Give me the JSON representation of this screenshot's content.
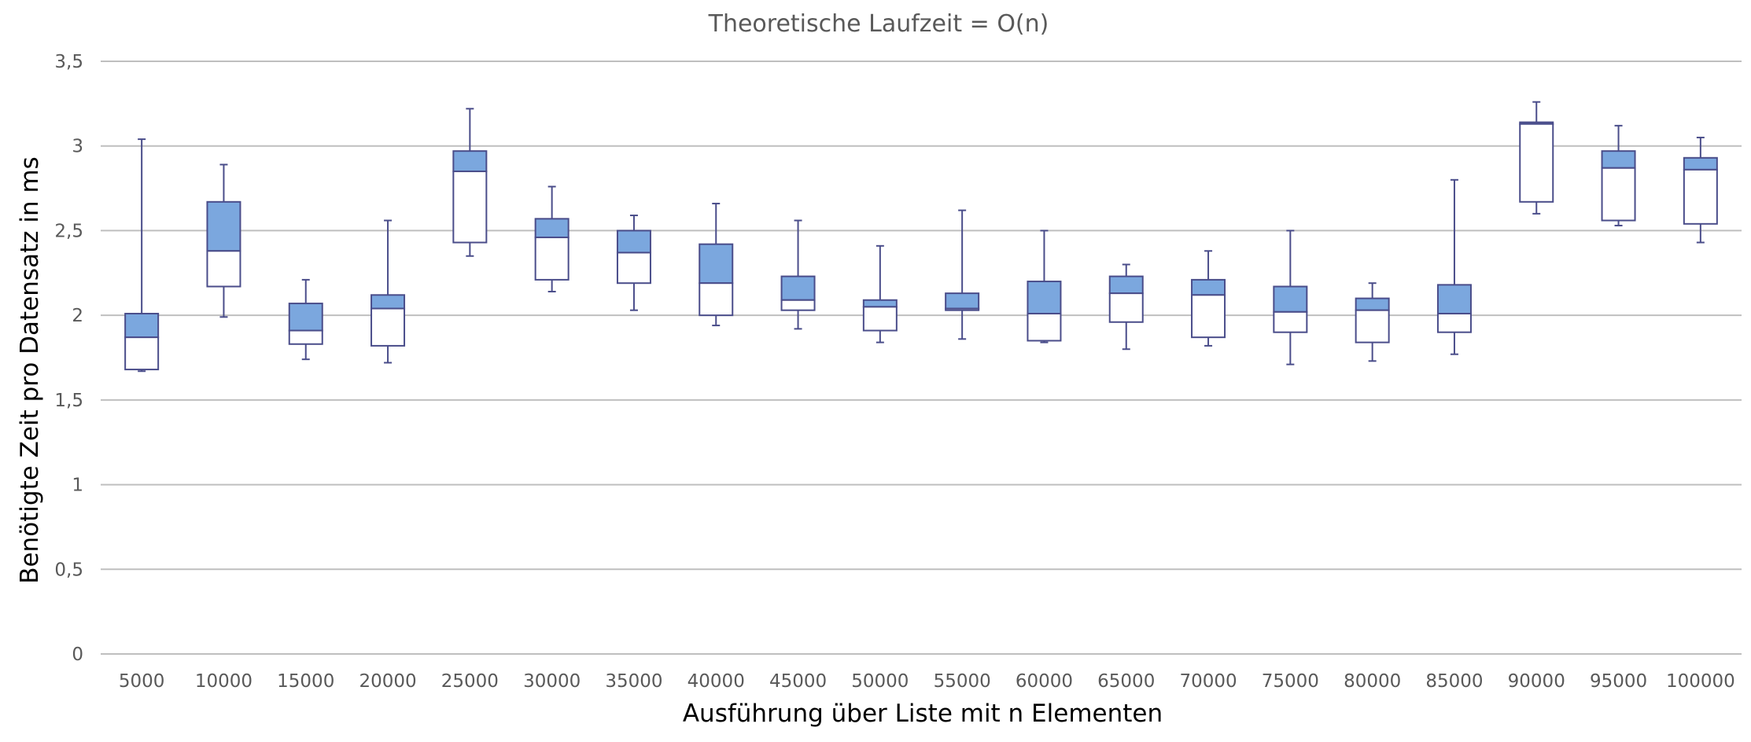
{
  "chart_data": {
    "type": "box",
    "title": "Theoretische Laufzeit = O(n)",
    "xlabel": "Ausführung über Liste mit n Elementen",
    "ylabel": "Benötigte Zeit pro Datensatz in ms",
    "ylim": [
      0,
      3.5
    ],
    "y_ticks": [
      "0",
      "0,5",
      "1",
      "1,5",
      "2",
      "2,5",
      "3",
      "3,5"
    ],
    "grid": true,
    "categories": [
      "5000",
      "10000",
      "15000",
      "20000",
      "25000",
      "30000",
      "35000",
      "40000",
      "45000",
      "50000",
      "55000",
      "60000",
      "65000",
      "70000",
      "75000",
      "80000",
      "85000",
      "90000",
      "95000",
      "100000"
    ],
    "boxes": [
      {
        "min": 1.67,
        "q1": 1.68,
        "median": 1.87,
        "q3": 2.01,
        "max": 3.04
      },
      {
        "min": 1.99,
        "q1": 2.17,
        "median": 2.38,
        "q3": 2.67,
        "max": 2.89
      },
      {
        "min": 1.74,
        "q1": 1.83,
        "median": 1.91,
        "q3": 2.07,
        "max": 2.21
      },
      {
        "min": 1.72,
        "q1": 1.82,
        "median": 2.04,
        "q3": 2.12,
        "max": 2.56
      },
      {
        "min": 2.35,
        "q1": 2.43,
        "median": 2.85,
        "q3": 2.97,
        "max": 3.22
      },
      {
        "min": 2.14,
        "q1": 2.21,
        "median": 2.46,
        "q3": 2.57,
        "max": 2.76
      },
      {
        "min": 2.03,
        "q1": 2.19,
        "median": 2.37,
        "q3": 2.5,
        "max": 2.59
      },
      {
        "min": 1.94,
        "q1": 2.0,
        "median": 2.19,
        "q3": 2.42,
        "max": 2.66
      },
      {
        "min": 1.92,
        "q1": 2.03,
        "median": 2.09,
        "q3": 2.23,
        "max": 2.56
      },
      {
        "min": 1.84,
        "q1": 1.91,
        "median": 2.05,
        "q3": 2.09,
        "max": 2.41
      },
      {
        "min": 1.86,
        "q1": 2.03,
        "median": 2.04,
        "q3": 2.13,
        "max": 2.62
      },
      {
        "min": 1.84,
        "q1": 1.85,
        "median": 2.01,
        "q3": 2.2,
        "max": 2.5
      },
      {
        "min": 1.8,
        "q1": 1.96,
        "median": 2.13,
        "q3": 2.23,
        "max": 2.3
      },
      {
        "min": 1.82,
        "q1": 1.87,
        "median": 2.12,
        "q3": 2.21,
        "max": 2.38
      },
      {
        "min": 1.71,
        "q1": 1.9,
        "median": 2.02,
        "q3": 2.17,
        "max": 2.5
      },
      {
        "min": 1.73,
        "q1": 1.84,
        "median": 2.03,
        "q3": 2.1,
        "max": 2.19
      },
      {
        "min": 1.77,
        "q1": 1.9,
        "median": 2.01,
        "q3": 2.18,
        "max": 2.8
      },
      {
        "min": 2.6,
        "q1": 2.67,
        "median": 3.13,
        "q3": 3.14,
        "max": 3.26
      },
      {
        "min": 2.53,
        "q1": 2.56,
        "median": 2.87,
        "q3": 2.97,
        "max": 3.12
      },
      {
        "min": 2.43,
        "q1": 2.54,
        "median": 2.86,
        "q3": 2.93,
        "max": 3.05
      }
    ],
    "colors": {
      "upper_box_fill": "#7BA7DE",
      "lower_box_fill": "#FFFFFF",
      "box_stroke": "#4A4D8A",
      "gridline": "#BFBFBF",
      "text": "#595959"
    }
  }
}
